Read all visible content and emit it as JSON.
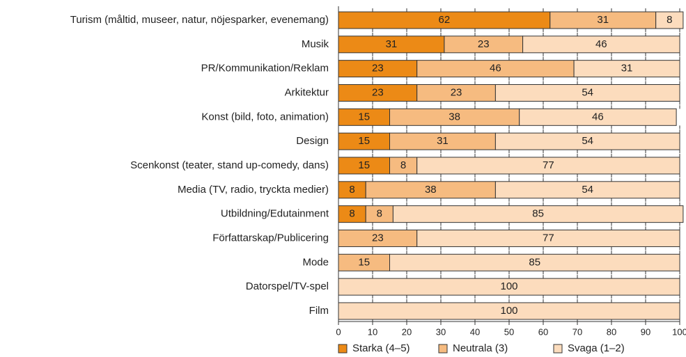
{
  "chart_data": {
    "type": "stacked-barh",
    "categories": [
      "Turism (måltid, museer, natur, nöjesparker, evenemang)",
      "Musik",
      "PR/Kommunikation/Reklam",
      "Arkitektur",
      "Konst (bild, foto, animation)",
      "Design",
      "Scenkonst (teater, stand up-comedy, dans)",
      "Media (TV, radio, tryckta medier)",
      "Utbildning/Edutainment",
      "Författarskap/Publicering",
      "Mode",
      "Datorspel/TV-spel",
      "Film"
    ],
    "series": [
      {
        "name": "Starka (4–5)",
        "color": "#ec8a16",
        "values": [
          62,
          31,
          23,
          23,
          15,
          15,
          15,
          8,
          8,
          null,
          null,
          null,
          null
        ]
      },
      {
        "name": "Neutrala (3)",
        "color": "#f6bb80",
        "values": [
          31,
          23,
          46,
          23,
          38,
          31,
          8,
          38,
          8,
          23,
          15,
          null,
          null
        ]
      },
      {
        "name": "Svaga (1–2)",
        "color": "#fcdcbd",
        "values": [
          8,
          46,
          31,
          54,
          46,
          54,
          77,
          54,
          85,
          77,
          85,
          100,
          100
        ]
      }
    ],
    "xlim": [
      0,
      100
    ],
    "xticks": [
      0,
      10,
      20,
      30,
      40,
      50,
      60,
      70,
      80,
      90,
      100
    ],
    "legend": "bottom"
  }
}
